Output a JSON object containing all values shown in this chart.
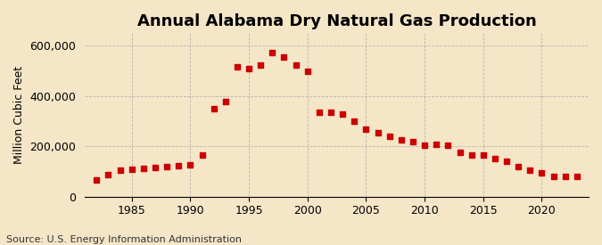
{
  "title": "Annual Alabama Dry Natural Gas Production",
  "ylabel": "Million Cubic Feet",
  "source": "Source: U.S. Energy Information Administration",
  "background_color": "#f5e6c8",
  "years": [
    1982,
    1983,
    1984,
    1985,
    1986,
    1987,
    1988,
    1989,
    1990,
    1991,
    1992,
    1993,
    1994,
    1995,
    1996,
    1997,
    1998,
    1999,
    2000,
    2001,
    2002,
    2003,
    2004,
    2005,
    2006,
    2007,
    2008,
    2009,
    2010,
    2011,
    2012,
    2013,
    2014,
    2015,
    2016,
    2017,
    2018,
    2019,
    2020,
    2021,
    2022,
    2023
  ],
  "values": [
    67000,
    87000,
    105000,
    108000,
    112000,
    117000,
    120000,
    125000,
    128000,
    167000,
    350000,
    380000,
    515000,
    510000,
    525000,
    575000,
    555000,
    525000,
    500000,
    335000,
    335000,
    330000,
    300000,
    270000,
    255000,
    240000,
    225000,
    220000,
    205000,
    210000,
    205000,
    175000,
    165000,
    165000,
    150000,
    140000,
    120000,
    105000,
    95000,
    82000,
    82000,
    80000
  ],
  "dot_color": "#cc0000",
  "dot_size": 18,
  "ylim": [
    0,
    650000
  ],
  "yticks": [
    0,
    200000,
    400000,
    600000
  ],
  "xlim": [
    1981,
    2024
  ],
  "xticks": [
    1985,
    1990,
    1995,
    2000,
    2005,
    2010,
    2015,
    2020
  ],
  "grid_color": "#aaaaaa",
  "title_fontsize": 13,
  "label_fontsize": 9,
  "source_fontsize": 8
}
